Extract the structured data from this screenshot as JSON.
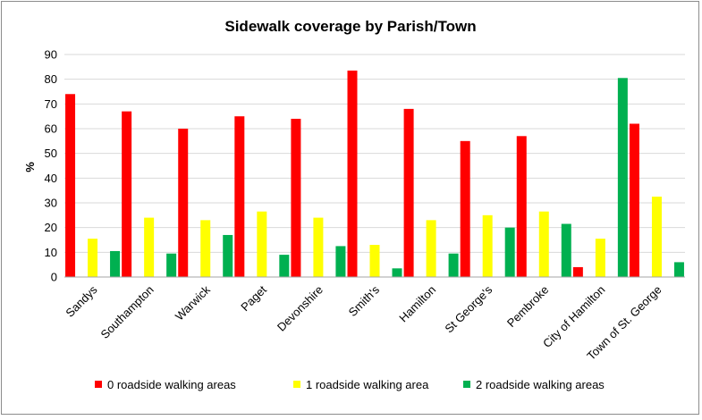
{
  "chart_data": {
    "type": "bar",
    "title": "Sidewalk coverage by Parish/Town",
    "xlabel": "",
    "ylabel": "%",
    "ylim": [
      0,
      90
    ],
    "yticks": [
      0,
      10,
      20,
      30,
      40,
      50,
      60,
      70,
      80,
      90
    ],
    "grid": true,
    "legend_position": "bottom",
    "categories": [
      "Sandys",
      "Southampton",
      "Warwick",
      "Paget",
      "Devonshire",
      "Smith's",
      "Hamilton",
      "St George's",
      "Pembroke",
      "City of Hamilton",
      "Town of St. George"
    ],
    "series": [
      {
        "name": "0 roadside walking areas",
        "color": "#ff0000",
        "values": [
          74,
          67,
          60,
          65,
          64,
          83.5,
          68,
          55,
          57,
          4,
          62
        ]
      },
      {
        "name": "1 roadside walking area",
        "color": "#ffff00",
        "values": [
          15.5,
          24,
          23,
          26.5,
          24,
          13,
          23,
          25,
          26.5,
          15.5,
          32.5
        ]
      },
      {
        "name": "2 roadside walking areas",
        "color": "#00b050",
        "values": [
          10.5,
          9.5,
          17,
          9,
          12.5,
          3.5,
          9.5,
          20,
          21.5,
          80.5,
          6
        ]
      }
    ]
  }
}
